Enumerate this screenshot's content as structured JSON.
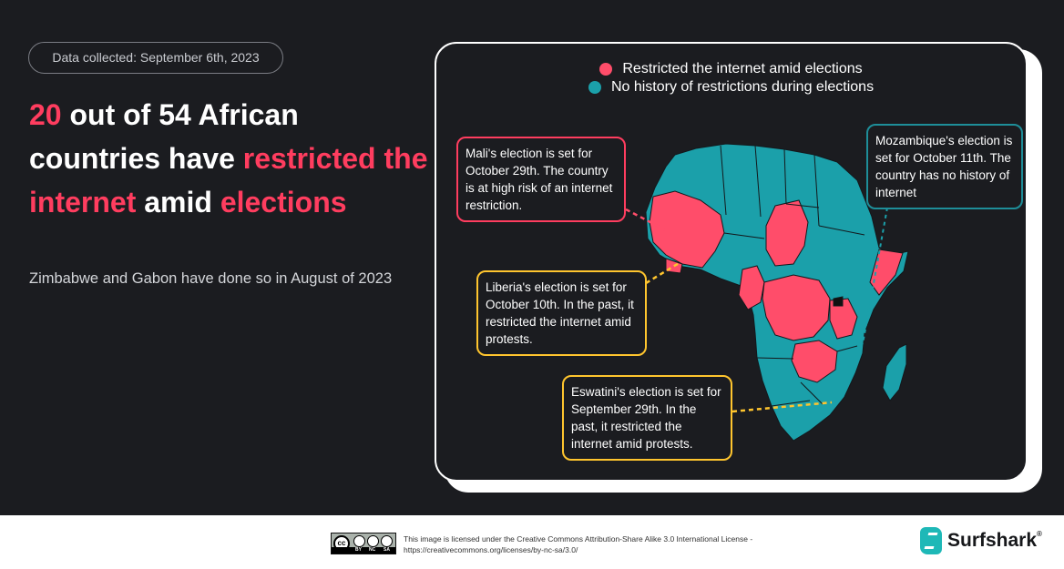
{
  "badge": "Data collected: September 6th, 2023",
  "headline": {
    "count": "20",
    "part1": " out of 54 African countries have ",
    "highlight1": "restricted the internet",
    "part2": " amid ",
    "highlight2": "elections"
  },
  "subtitle": "Zimbabwe and Gabon have done so in August of 2023",
  "legend": [
    {
      "label": "Restricted the internet amid elections",
      "color": "#ff4d6a"
    },
    {
      "label": "No history of restrictions during elections",
      "color": "#1ba0aa"
    }
  ],
  "colors": {
    "restricted": "#ff4d6a",
    "no_history": "#1ba0aa",
    "pink_text": "#ff3d5f",
    "yellow": "#ffc52e",
    "teal_border": "#1e8e99",
    "background": "#1b1c20"
  },
  "callouts": {
    "mali": "Mali's election is set for October 29th. The country is at high risk of an internet restriction.",
    "mozambique": "Mozambique's election is set for October 11th. The country has no history of internet",
    "liberia": "Liberia's election is set for October 10th. In the past, it restricted the internet amid protests.",
    "eswatini": "Eswatini's election is set for September 29th. In the past, it restricted the internet amid protests."
  },
  "footer": {
    "cc_badge": "cc",
    "cc_by": "BY",
    "cc_nc": "NC",
    "cc_sa": "SA",
    "license": "This image is licensed under the Creative Commons Attribution-Share Alike 3.0 International License - https://creativecommons.org/licenses/by-nc-sa/3.0/",
    "brand": "Surfshark",
    "brand_mark": "®"
  }
}
